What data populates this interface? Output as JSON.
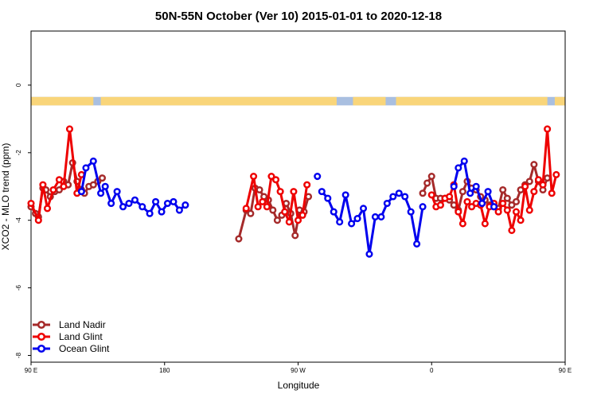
{
  "chart_data": {
    "type": "line",
    "title": "50N-55N October (Ver 10)   2015-01-01 to 2020-12-18",
    "xlabel": "Longitude",
    "ylabel": "XCO2 - MLO trend (ppm)",
    "xlim": [
      90,
      450
    ],
    "ylim": [
      -8.2,
      1.6
    ],
    "x_ticks": [
      {
        "value": 90,
        "label": "90 E"
      },
      {
        "value": 180,
        "label": "180"
      },
      {
        "value": 270,
        "label": "90 W"
      },
      {
        "value": 360,
        "label": "0"
      },
      {
        "value": 450,
        "label": "90 E"
      },
      {
        "value": 540,
        "label": "180"
      }
    ],
    "y_ticks": [
      {
        "value": 0,
        "label": "0"
      },
      {
        "value": -2,
        "label": "-2"
      },
      {
        "value": -4,
        "label": "-4"
      },
      {
        "value": -6,
        "label": "-6"
      },
      {
        "value": -8,
        "label": "-8"
      }
    ],
    "legend_position": "bottom-left",
    "grid": false,
    "surface_band": {
      "y_top": -0.35,
      "y_bottom": -0.6,
      "land_color": "#f9d57a",
      "ocean_color": "#a9bfe0"
    },
    "series": [
      {
        "name": "Land Nadir",
        "color": "#a52a2a",
        "segments": [
          [
            [
              90,
              -3.6
            ],
            [
              93,
              -3.8
            ],
            [
              95,
              -3.9
            ],
            [
              98,
              -3.05
            ],
            [
              100,
              -3.1
            ],
            [
              103,
              -3.3
            ],
            [
              106,
              -3.15
            ],
            [
              109,
              -3.1
            ],
            [
              112,
              -2.85
            ],
            [
              115,
              -2.95
            ],
            [
              118,
              -2.3
            ],
            [
              121,
              -2.85
            ],
            [
              124,
              -3.1
            ],
            [
              126,
              -3.2
            ],
            [
              129,
              -3.0
            ],
            [
              132,
              -2.95
            ],
            [
              135,
              -2.85
            ],
            [
              138,
              -2.75
            ]
          ],
          [
            [
              230,
              -4.55
            ],
            [
              235,
              -3.7
            ],
            [
              238,
              -3.8
            ],
            [
              241,
              -3.05
            ],
            [
              244,
              -3.1
            ],
            [
              247,
              -3.3
            ],
            [
              250,
              -3.4
            ],
            [
              253,
              -3.7
            ],
            [
              256,
              -4.0
            ],
            [
              259,
              -3.85
            ],
            [
              262,
              -3.5
            ],
            [
              265,
              -3.8
            ],
            [
              268,
              -4.45
            ],
            [
              271,
              -3.7
            ],
            [
              274,
              -3.75
            ],
            [
              277,
              -3.3
            ]
          ],
          [
            [
              354,
              -3.2
            ],
            [
              357,
              -2.9
            ],
            [
              360,
              -2.7
            ],
            [
              363,
              -3.35
            ],
            [
              366,
              -3.35
            ],
            [
              369,
              -3.35
            ],
            [
              372,
              -3.4
            ],
            [
              375,
              -3.55
            ],
            [
              378,
              -3.7
            ],
            [
              381,
              -3.15
            ],
            [
              384,
              -2.85
            ],
            [
              387,
              -3.05
            ],
            [
              390,
              -3.1
            ],
            [
              393,
              -3.3
            ],
            [
              396,
              -3.4
            ],
            [
              399,
              -3.55
            ],
            [
              402,
              -3.6
            ],
            [
              405,
              -3.65
            ],
            [
              408,
              -3.1
            ],
            [
              411,
              -3.35
            ],
            [
              414,
              -3.55
            ],
            [
              417,
              -3.45
            ],
            [
              420,
              -3.1
            ],
            [
              423,
              -2.95
            ],
            [
              426,
              -2.85
            ],
            [
              429,
              -2.35
            ],
            [
              432,
              -2.85
            ],
            [
              435,
              -3.1
            ],
            [
              438,
              -2.75
            ]
          ]
        ]
      },
      {
        "name": "Land Glint",
        "color": "#ee0000",
        "segments": [
          [
            [
              90,
              -3.5
            ],
            [
              95,
              -4.0
            ],
            [
              98,
              -2.95
            ],
            [
              101,
              -3.65
            ],
            [
              105,
              -3.1
            ],
            [
              109,
              -2.8
            ],
            [
              112,
              -3.0
            ],
            [
              116,
              -1.3
            ],
            [
              121,
              -3.2
            ],
            [
              124,
              -2.65
            ]
          ],
          [
            [
              235,
              -3.65
            ],
            [
              240,
              -2.7
            ],
            [
              243,
              -3.6
            ],
            [
              246,
              -3.45
            ],
            [
              249,
              -3.6
            ],
            [
              252,
              -2.7
            ],
            [
              255,
              -2.8
            ],
            [
              258,
              -3.15
            ],
            [
              261,
              -3.75
            ],
            [
              264,
              -4.05
            ],
            [
              267,
              -3.15
            ],
            [
              270,
              -4.0
            ],
            [
              273,
              -3.85
            ],
            [
              276,
              -2.95
            ]
          ],
          [
            [
              360,
              -3.25
            ],
            [
              363,
              -3.6
            ],
            [
              366,
              -3.55
            ],
            [
              369,
              -3.35
            ],
            [
              372,
              -3.3
            ],
            [
              375,
              -2.95
            ],
            [
              378,
              -3.75
            ],
            [
              381,
              -4.1
            ],
            [
              384,
              -3.45
            ],
            [
              387,
              -3.6
            ],
            [
              390,
              -3.5
            ],
            [
              393,
              -3.55
            ],
            [
              396,
              -4.1
            ],
            [
              399,
              -3.6
            ],
            [
              402,
              -3.5
            ],
            [
              405,
              -3.75
            ],
            [
              408,
              -3.5
            ],
            [
              411,
              -3.7
            ],
            [
              414,
              -4.3
            ],
            [
              417,
              -3.75
            ],
            [
              420,
              -4.0
            ],
            [
              423,
              -3.0
            ],
            [
              426,
              -3.7
            ],
            [
              429,
              -3.15
            ],
            [
              432,
              -2.8
            ],
            [
              435,
              -2.95
            ],
            [
              438,
              -1.3
            ],
            [
              441,
              -3.2
            ],
            [
              444,
              -2.65
            ]
          ]
        ]
      },
      {
        "name": "Ocean Glint",
        "color": "#0000ee",
        "segments": [
          [
            [
              124,
              -3.15
            ],
            [
              127,
              -2.45
            ],
            [
              132,
              -2.25
            ],
            [
              137,
              -3.2
            ],
            [
              140,
              -3.0
            ],
            [
              144,
              -3.5
            ],
            [
              148,
              -3.15
            ],
            [
              152,
              -3.6
            ],
            [
              156,
              -3.5
            ],
            [
              160,
              -3.4
            ],
            [
              165,
              -3.6
            ],
            [
              170,
              -3.8
            ],
            [
              174,
              -3.45
            ],
            [
              178,
              -3.75
            ],
            [
              182,
              -3.5
            ],
            [
              186,
              -3.45
            ],
            [
              190,
              -3.7
            ],
            [
              194,
              -3.55
            ]
          ],
          [
            [
              286,
              -3.15
            ],
            [
              290,
              -3.35
            ],
            [
              294,
              -3.75
            ],
            [
              298,
              -4.05
            ],
            [
              302,
              -3.25
            ],
            [
              306,
              -4.1
            ],
            [
              310,
              -3.95
            ],
            [
              314,
              -3.65
            ],
            [
              318,
              -5.0
            ],
            [
              322,
              -3.9
            ],
            [
              326,
              -3.9
            ],
            [
              330,
              -3.5
            ],
            [
              334,
              -3.3
            ],
            [
              338,
              -3.2
            ],
            [
              342,
              -3.3
            ],
            [
              346,
              -3.75
            ],
            [
              350,
              -4.7
            ],
            [
              354,
              -3.6
            ]
          ],
          [
            [
              375,
              -3.0
            ],
            [
              378,
              -2.45
            ],
            [
              382,
              -2.25
            ],
            [
              386,
              -3.2
            ],
            [
              390,
              -3.0
            ],
            [
              394,
              -3.5
            ],
            [
              398,
              -3.15
            ],
            [
              402,
              -3.6
            ]
          ]
        ]
      },
      {
        "name": "",
        "color": "#0000ee",
        "points_only": true,
        "segments": [
          [
            [
              283,
              -2.7
            ]
          ]
        ]
      }
    ]
  }
}
